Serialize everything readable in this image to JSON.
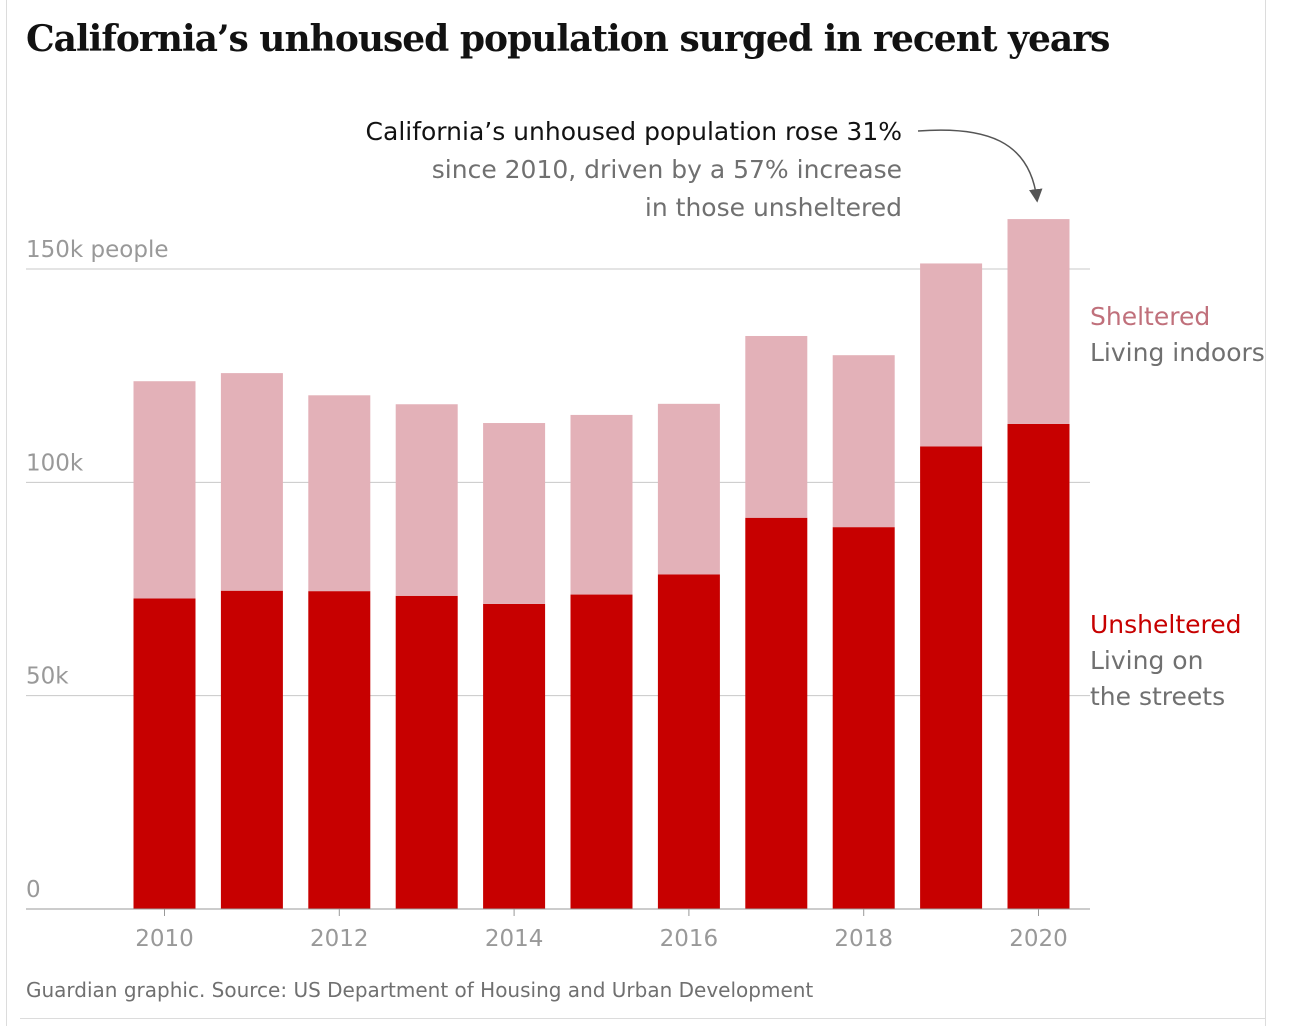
{
  "title": "California’s unhoused population surged in recent years",
  "source": "Guardian graphic. Source: US Department of Housing and Urban Development",
  "annotation": {
    "line1": "California’s unhoused population rose 31%",
    "line2": "since 2010, driven by a 57% increase",
    "line3": "in those unsheltered"
  },
  "legend": {
    "sheltered_label": "Sheltered",
    "sheltered_desc": "Living indoors",
    "unsheltered_label": "Unsheltered",
    "unsheltered_desc_line1": "Living on",
    "unsheltered_desc_line2": "the streets"
  },
  "colors": {
    "sheltered": "#e3b1b8",
    "unsheltered": "#c70000",
    "sheltered_text": "#c0707b",
    "grid": "#c8c8c8",
    "axis_text": "#999999"
  },
  "chart_data": {
    "type": "bar",
    "stacked": true,
    "categories": [
      "2010",
      "2011",
      "2012",
      "2013",
      "2014",
      "2015",
      "2016",
      "2017",
      "2018",
      "2019",
      "2020"
    ],
    "tick_labels": [
      "2010",
      "2012",
      "2014",
      "2016",
      "2018",
      "2020"
    ],
    "series": [
      {
        "name": "Unsheltered",
        "values": [
          72800,
          74600,
          74500,
          73400,
          71500,
          73700,
          78400,
          91700,
          89500,
          108400,
          113700
        ]
      },
      {
        "name": "Sheltered",
        "values": [
          50900,
          51000,
          45900,
          44900,
          42400,
          42100,
          40000,
          42600,
          40300,
          42900,
          48000
        ]
      }
    ],
    "y_ticks": [
      {
        "value": 0,
        "label": "0"
      },
      {
        "value": 50000,
        "label": "50k"
      },
      {
        "value": 100000,
        "label": "100k"
      },
      {
        "value": 150000,
        "label": "150k people"
      }
    ],
    "ylim": [
      0,
      150000
    ],
    "xlabel": "",
    "ylabel": "",
    "grid": true
  }
}
